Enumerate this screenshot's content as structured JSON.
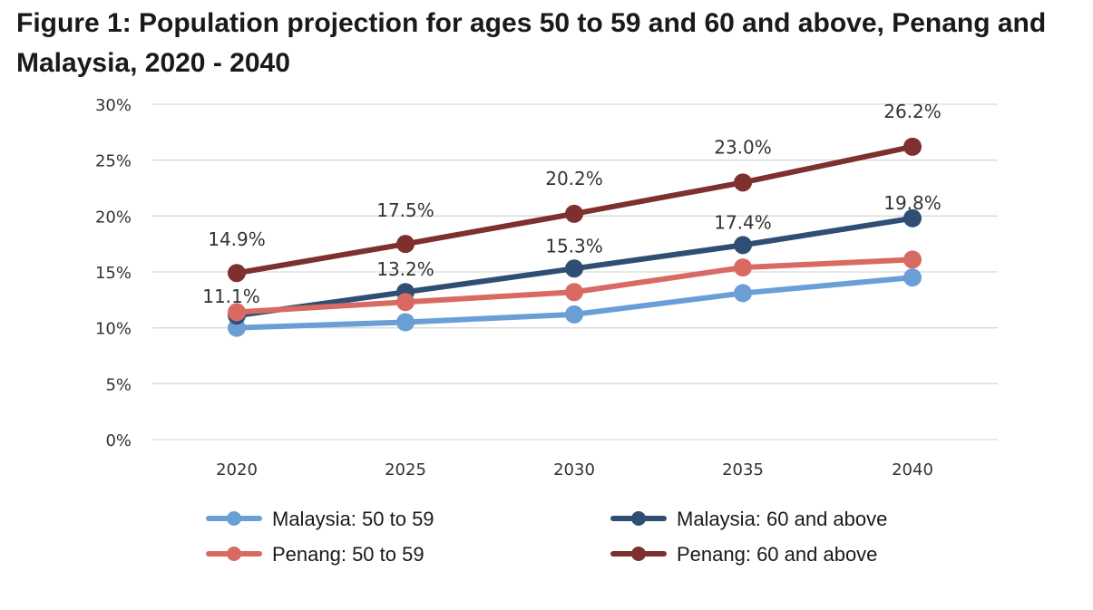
{
  "title": "Figure 1: Population projection for ages 50 to 59 and 60 and above, Penang and Malaysia, 2020 - 2040",
  "chart_data": {
    "type": "line",
    "title": "Figure 1: Population projection for ages 50 to 59 and 60 and above, Penang and Malaysia, 2020 - 2040",
    "xlabel": "",
    "ylabel": "",
    "categories": [
      "2020",
      "2025",
      "2030",
      "2035",
      "2040"
    ],
    "ylim": [
      0,
      30
    ],
    "yticks": [
      "0%",
      "5%",
      "10%",
      "15%",
      "20%",
      "25%",
      "30%"
    ],
    "grid": true,
    "legend_position": "bottom",
    "series": [
      {
        "name": "Malaysia: 50 to 59",
        "color": "#6a9fd6",
        "values": [
          10.0,
          10.5,
          11.2,
          13.1,
          14.5
        ],
        "labels": null
      },
      {
        "name": "Malaysia: 60 and above",
        "color": "#2e4f73",
        "values": [
          11.1,
          13.2,
          15.3,
          17.4,
          19.8
        ],
        "labels": [
          "11.1%",
          "13.2%",
          "15.3%",
          "17.4%",
          "19.8%"
        ]
      },
      {
        "name": "Penang: 50 to 59",
        "color": "#d86a63",
        "values": [
          11.4,
          12.3,
          13.2,
          15.4,
          16.1
        ],
        "labels": null
      },
      {
        "name": "Penang: 60 and above",
        "color": "#7d302d",
        "values": [
          14.9,
          17.5,
          20.2,
          23.0,
          26.2
        ],
        "labels": [
          "14.9%",
          "17.5%",
          "20.2%",
          "23.0%",
          "26.2%"
        ]
      }
    ]
  }
}
